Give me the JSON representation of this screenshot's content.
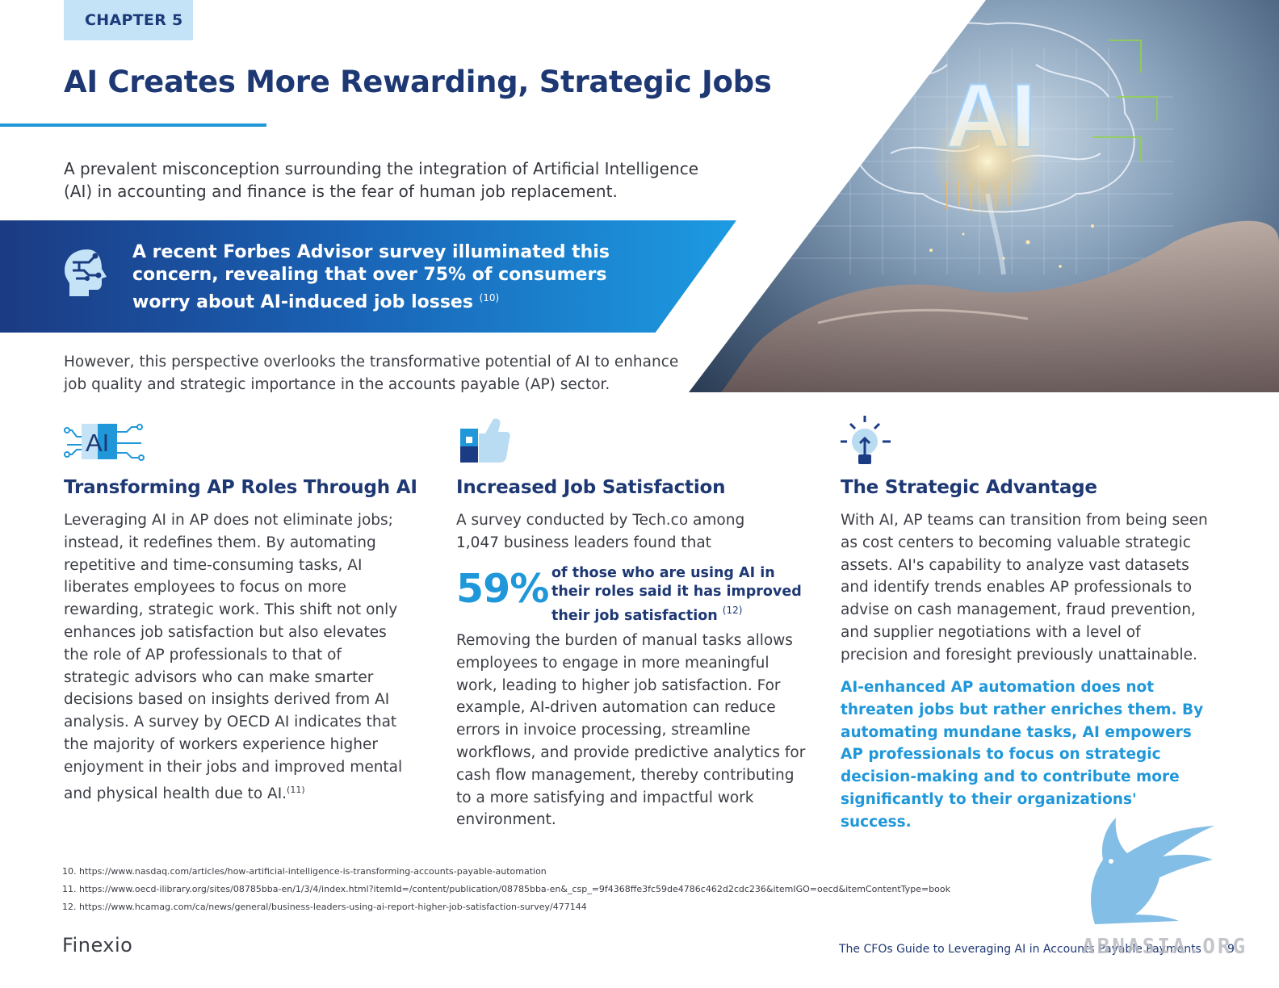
{
  "header": {
    "chapter": "CHAPTER 5",
    "title": "AI Creates More Rewarding, Strategic Jobs"
  },
  "intro": "A prevalent misconception surrounding the integration of Artificial Intelligence (AI) in accounting and finance is the fear of human job replacement.",
  "banner": {
    "text": "A recent Forbes Advisor survey illuminated this concern, revealing that over 75% of consumers worry about AI-induced job losses",
    "ref": "(10)",
    "icon": "brain-head-icon"
  },
  "however": "However, this perspective overlooks the transformative potential of AI to enhance job quality and strategic importance in the accounts payable (AP) sector.",
  "hero": {
    "label": "AI"
  },
  "columns": [
    {
      "icon": "ai-circuit-icon",
      "icon_label": "AI",
      "heading": "Transforming AP Roles Through AI",
      "body": "Leveraging AI in AP does not eliminate jobs; instead, it redefines them. By automating repetitive and time-consuming tasks, AI liberates employees to focus on more rewarding, strategic work. This shift not only enhances job satisfaction but also elevates the role of AP professionals to that of strategic advisors who can make smarter decisions based on insights derived from AI analysis. A survey by OECD AI indicates that the majority of workers experience higher enjoyment in their jobs and improved mental and physical health due to AI.",
      "ref": "(11)"
    },
    {
      "icon": "thumbs-up-icon",
      "heading": "Increased Job Satisfaction",
      "intro": "A survey conducted by Tech.co among 1,047 business leaders found that",
      "stat_value": "59%",
      "stat_text": "of those who are using AI in their roles said it has improved their job satisfaction",
      "stat_ref": "(12)",
      "body": "Removing the burden of manual tasks allows employees to engage in more meaningful work, leading to higher job satisfaction. For example, AI-driven automation can reduce errors in invoice processing, streamline workflows, and provide predictive analytics for cash flow management, thereby contributing to a more satisfying and impactful work environment."
    },
    {
      "icon": "lightbulb-icon",
      "heading": "The Strategic Advantage",
      "body": "With AI, AP teams can transition from being seen as cost centers to becoming valuable strategic assets. AI's capability to analyze vast datasets and identify trends enables AP professionals to advise on cash management, fraud prevention, and supplier negotiations with a level of precision and foresight previously unattainable.",
      "callout": "AI-enhanced AP automation does not threaten jobs but rather enriches them. By automating mundane tasks, AI empowers AP professionals to focus on strategic decision-making and to contribute more significantly to their organizations' success."
    }
  ],
  "footnotes": [
    "10. https://www.nasdaq.com/articles/how-artificial-intelligence-is-transforming-accounts-payable-automation",
    "11.  https://www.oecd-ilibrary.org/sites/08785bba-en/1/3/4/index.html?itemId=/content/publication/08785bba-en&_csp_=9f4368ffe3fc59de4786c462d2cdc236&itemIGO=oecd&itemContentType=book",
    "12. https://www.hcamag.com/ca/news/general/business-leaders-using-ai-report-higher-job-satisfaction-survey/477144"
  ],
  "footer": {
    "logo": "Finexio",
    "guide_title": "The CFOs Guide to Leveraging AI in Accounts Payable Payments",
    "page_number": "9",
    "watermark": "ABNASIA.ORG"
  },
  "colors": {
    "navy": "#1e3874",
    "accent_blue": "#1f97d9",
    "tag_bg": "#c4e3f7"
  }
}
